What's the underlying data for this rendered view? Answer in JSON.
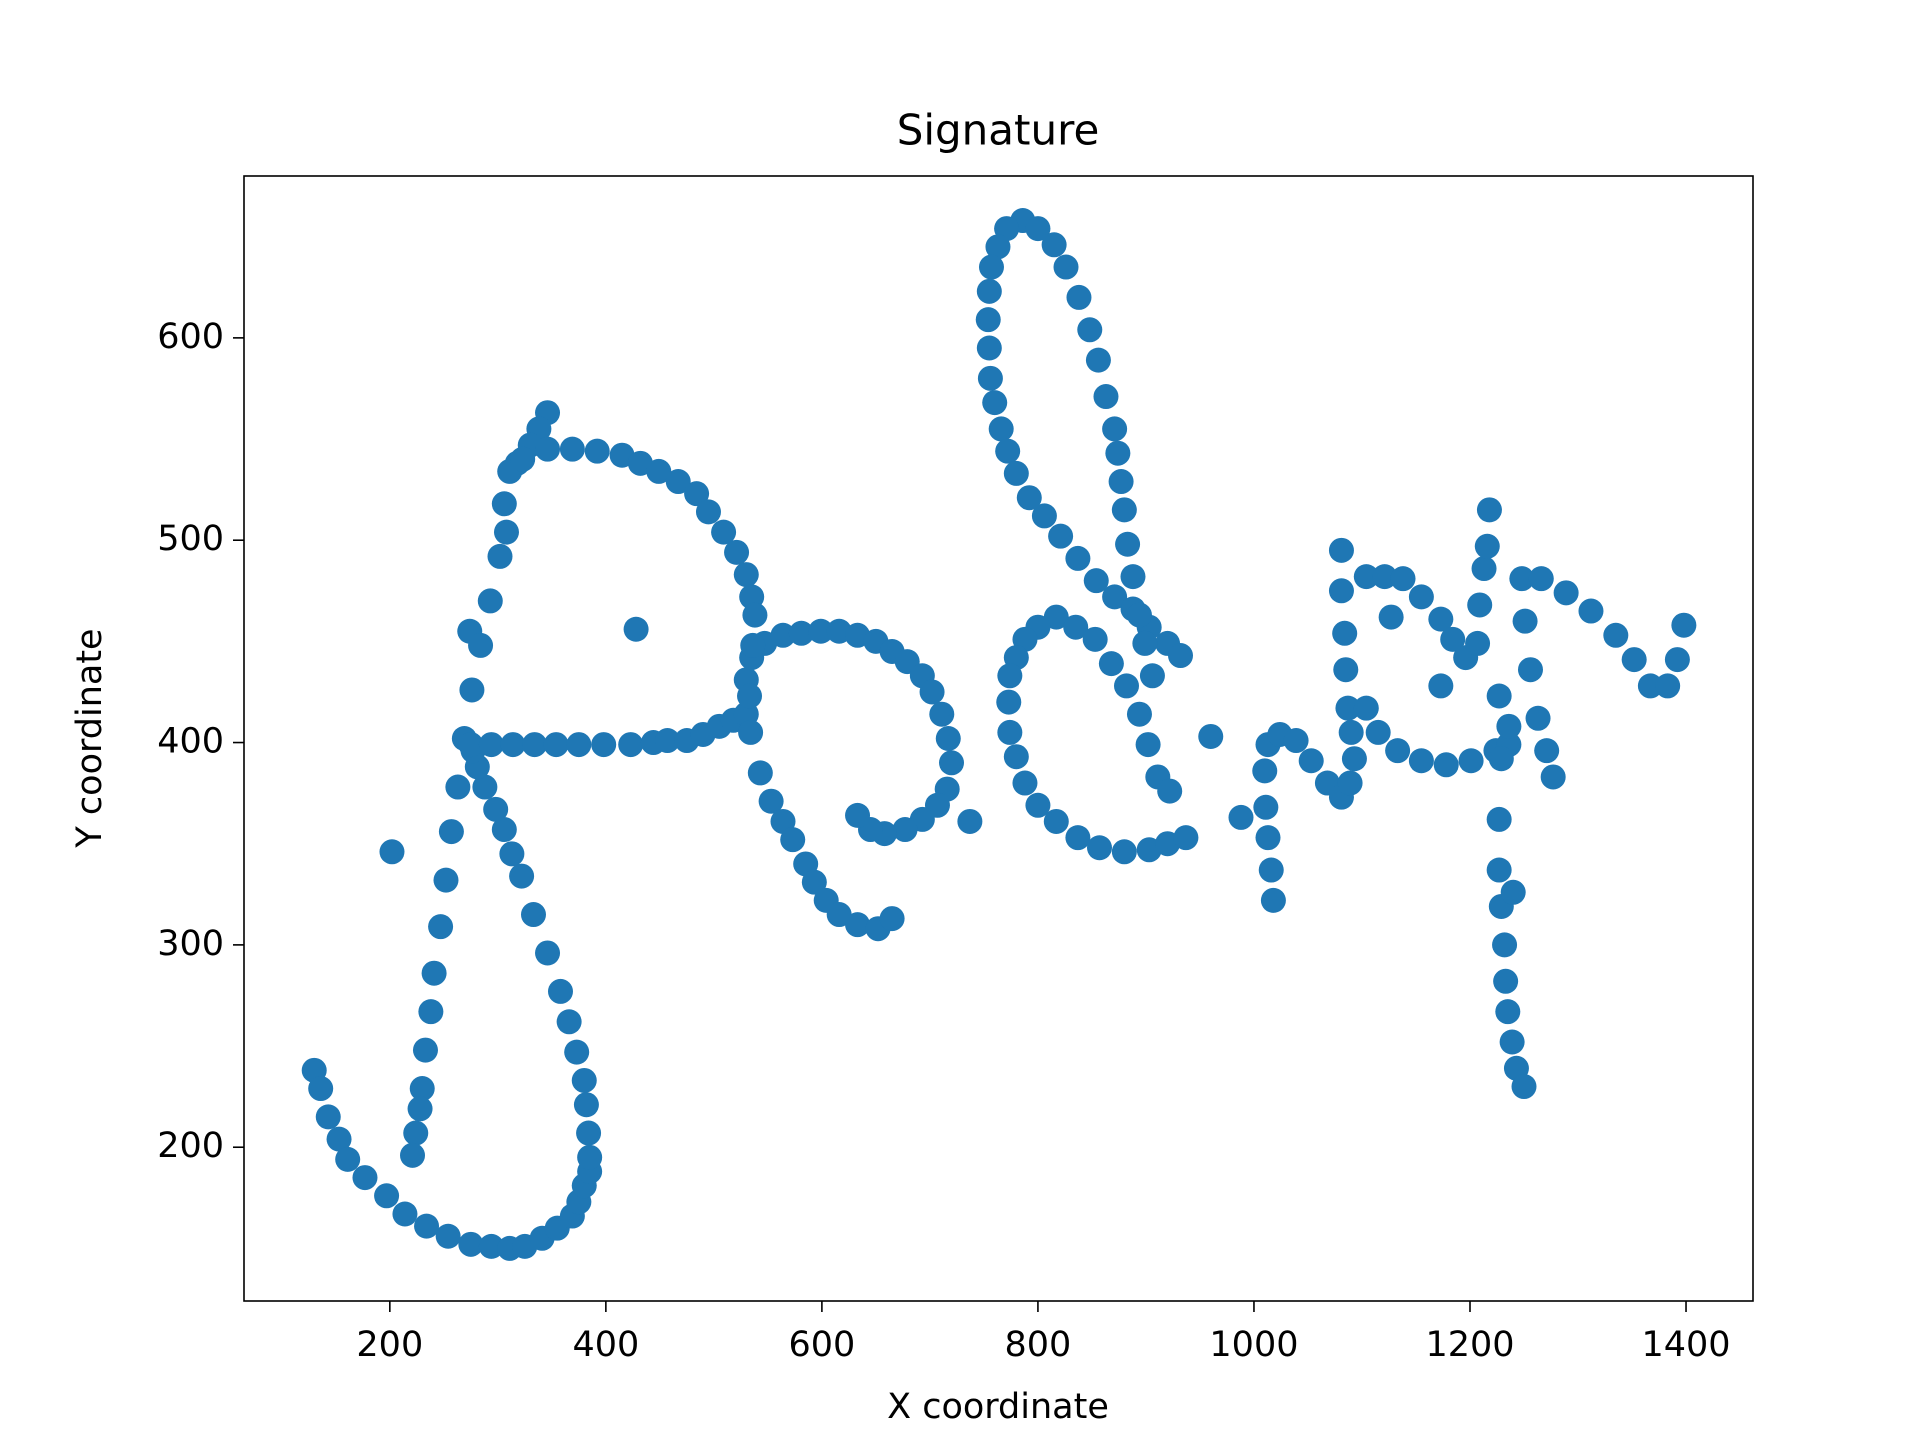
{
  "chart_data": {
    "type": "scatter",
    "title": "Signature",
    "xlabel": "X coordinate",
    "ylabel": "Y coordinate",
    "xlim": [
      65,
      1462
    ],
    "ylim": [
      124,
      680
    ],
    "xticks": [
      200,
      400,
      600,
      800,
      1000,
      1200,
      1400
    ],
    "yticks": [
      200,
      300,
      400,
      500,
      600
    ],
    "color": "#1f77b4",
    "x": [
      346,
      338,
      330,
      318,
      311,
      306,
      308,
      302,
      293,
      274,
      284,
      276,
      269,
      263,
      257,
      252,
      247,
      241,
      238,
      233,
      230,
      228,
      224,
      221,
      130,
      136,
      143,
      153,
      161,
      177,
      197,
      214,
      234,
      254,
      275,
      294,
      311,
      325,
      341,
      355,
      369,
      375,
      380,
      385,
      385,
      384,
      382,
      380,
      373,
      366,
      358,
      346,
      333,
      322,
      313,
      306,
      298,
      288,
      281,
      277,
      275,
      294,
      314,
      334,
      354,
      375,
      398,
      423,
      444,
      457,
      475,
      490,
      505,
      518,
      530,
      530,
      535,
      547,
      564,
      581,
      599,
      616,
      633,
      650,
      665,
      679,
      693,
      702,
      711,
      717,
      720,
      716,
      707,
      693,
      677,
      658,
      645,
      633,
      323,
      346,
      369,
      392,
      415,
      432,
      449,
      467,
      484,
      495,
      509,
      521,
      530,
      535,
      538,
      536,
      533,
      534,
      543,
      553,
      564,
      573,
      585,
      593,
      604,
      616,
      633,
      652,
      665,
      202,
      428,
      737,
      960,
      988,
      1127,
      1173,
      786,
      771,
      763,
      757,
      755,
      754,
      755,
      756,
      760,
      766,
      772,
      780,
      792,
      806,
      821,
      837,
      854,
      871,
      888,
      903,
      920,
      932,
      800,
      815,
      826,
      838,
      848,
      856,
      863,
      871,
      874,
      877,
      880,
      883,
      888,
      894,
      899,
      906,
      817,
      800,
      788,
      780,
      774,
      773,
      774,
      780,
      788,
      800,
      817,
      837,
      857,
      880,
      903,
      920,
      937,
      835,
      853,
      868,
      882,
      894,
      902,
      911,
      922,
      1018,
      1016,
      1013,
      1011,
      1010,
      1013,
      1024,
      1039,
      1053,
      1068,
      1081,
      1089,
      1093,
      1090,
      1087,
      1085,
      1084,
      1081,
      1081,
      1104,
      1121,
      1138,
      1155,
      1173,
      1184,
      1196,
      1207,
      1209,
      1213,
      1216,
      1218,
      1104,
      1115,
      1133,
      1155,
      1178,
      1201,
      1224,
      1236,
      1227,
      1229,
      1227,
      1227,
      1229,
      1232,
      1233,
      1235,
      1239,
      1243,
      1250,
      1240,
      1236,
      1248,
      1251,
      1256,
      1263,
      1271,
      1277,
      1266,
      1289,
      1312,
      1335,
      1352,
      1367,
      1383,
      1392,
      1398
    ],
    "values": [
      563,
      555,
      547,
      538,
      534,
      518,
      504,
      492,
      470,
      455,
      448,
      426,
      402,
      378,
      356,
      332,
      309,
      286,
      267,
      248,
      229,
      219,
      207,
      196,
      238,
      229,
      215,
      204,
      194,
      185,
      176,
      167,
      161,
      156,
      152,
      151,
      150,
      151,
      155,
      160,
      166,
      173,
      181,
      188,
      195,
      207,
      221,
      233,
      247,
      262,
      277,
      296,
      315,
      334,
      345,
      357,
      367,
      378,
      388,
      396,
      399,
      399,
      399,
      399,
      399,
      399,
      399,
      399,
      400,
      401,
      401,
      404,
      408,
      411,
      414,
      431,
      442,
      449,
      453,
      454,
      455,
      455,
      453,
      450,
      445,
      440,
      433,
      425,
      414,
      402,
      390,
      377,
      369,
      362,
      357,
      355,
      357,
      364,
      540,
      545,
      545,
      544,
      542,
      538,
      534,
      529,
      523,
      514,
      504,
      494,
      483,
      472,
      463,
      448,
      423,
      405,
      385,
      371,
      361,
      352,
      340,
      331,
      322,
      315,
      310,
      308,
      313,
      346,
      456,
      361,
      403,
      363,
      462,
      428,
      658,
      654,
      645,
      635,
      623,
      609,
      595,
      580,
      568,
      555,
      544,
      533,
      521,
      512,
      502,
      491,
      480,
      472,
      466,
      457,
      449,
      443,
      654,
      646,
      635,
      620,
      604,
      589,
      571,
      555,
      543,
      529,
      515,
      498,
      482,
      463,
      449,
      433,
      462,
      457,
      451,
      442,
      433,
      420,
      405,
      393,
      380,
      369,
      361,
      353,
      348,
      346,
      347,
      350,
      353,
      457,
      451,
      439,
      428,
      414,
      399,
      383,
      376,
      322,
      337,
      353,
      368,
      386,
      399,
      404,
      401,
      391,
      380,
      373,
      380,
      392,
      405,
      417,
      436,
      454,
      475,
      495,
      482,
      482,
      481,
      472,
      461,
      451,
      442,
      449,
      468,
      486,
      497,
      515,
      417,
      405,
      396,
      391,
      389,
      391,
      396,
      399,
      423,
      392,
      362,
      337,
      319,
      300,
      282,
      267,
      252,
      239,
      230,
      326,
      408,
      481,
      460,
      436,
      412,
      396,
      383,
      481,
      474,
      465,
      453,
      441,
      428,
      428,
      441,
      458
    ]
  }
}
